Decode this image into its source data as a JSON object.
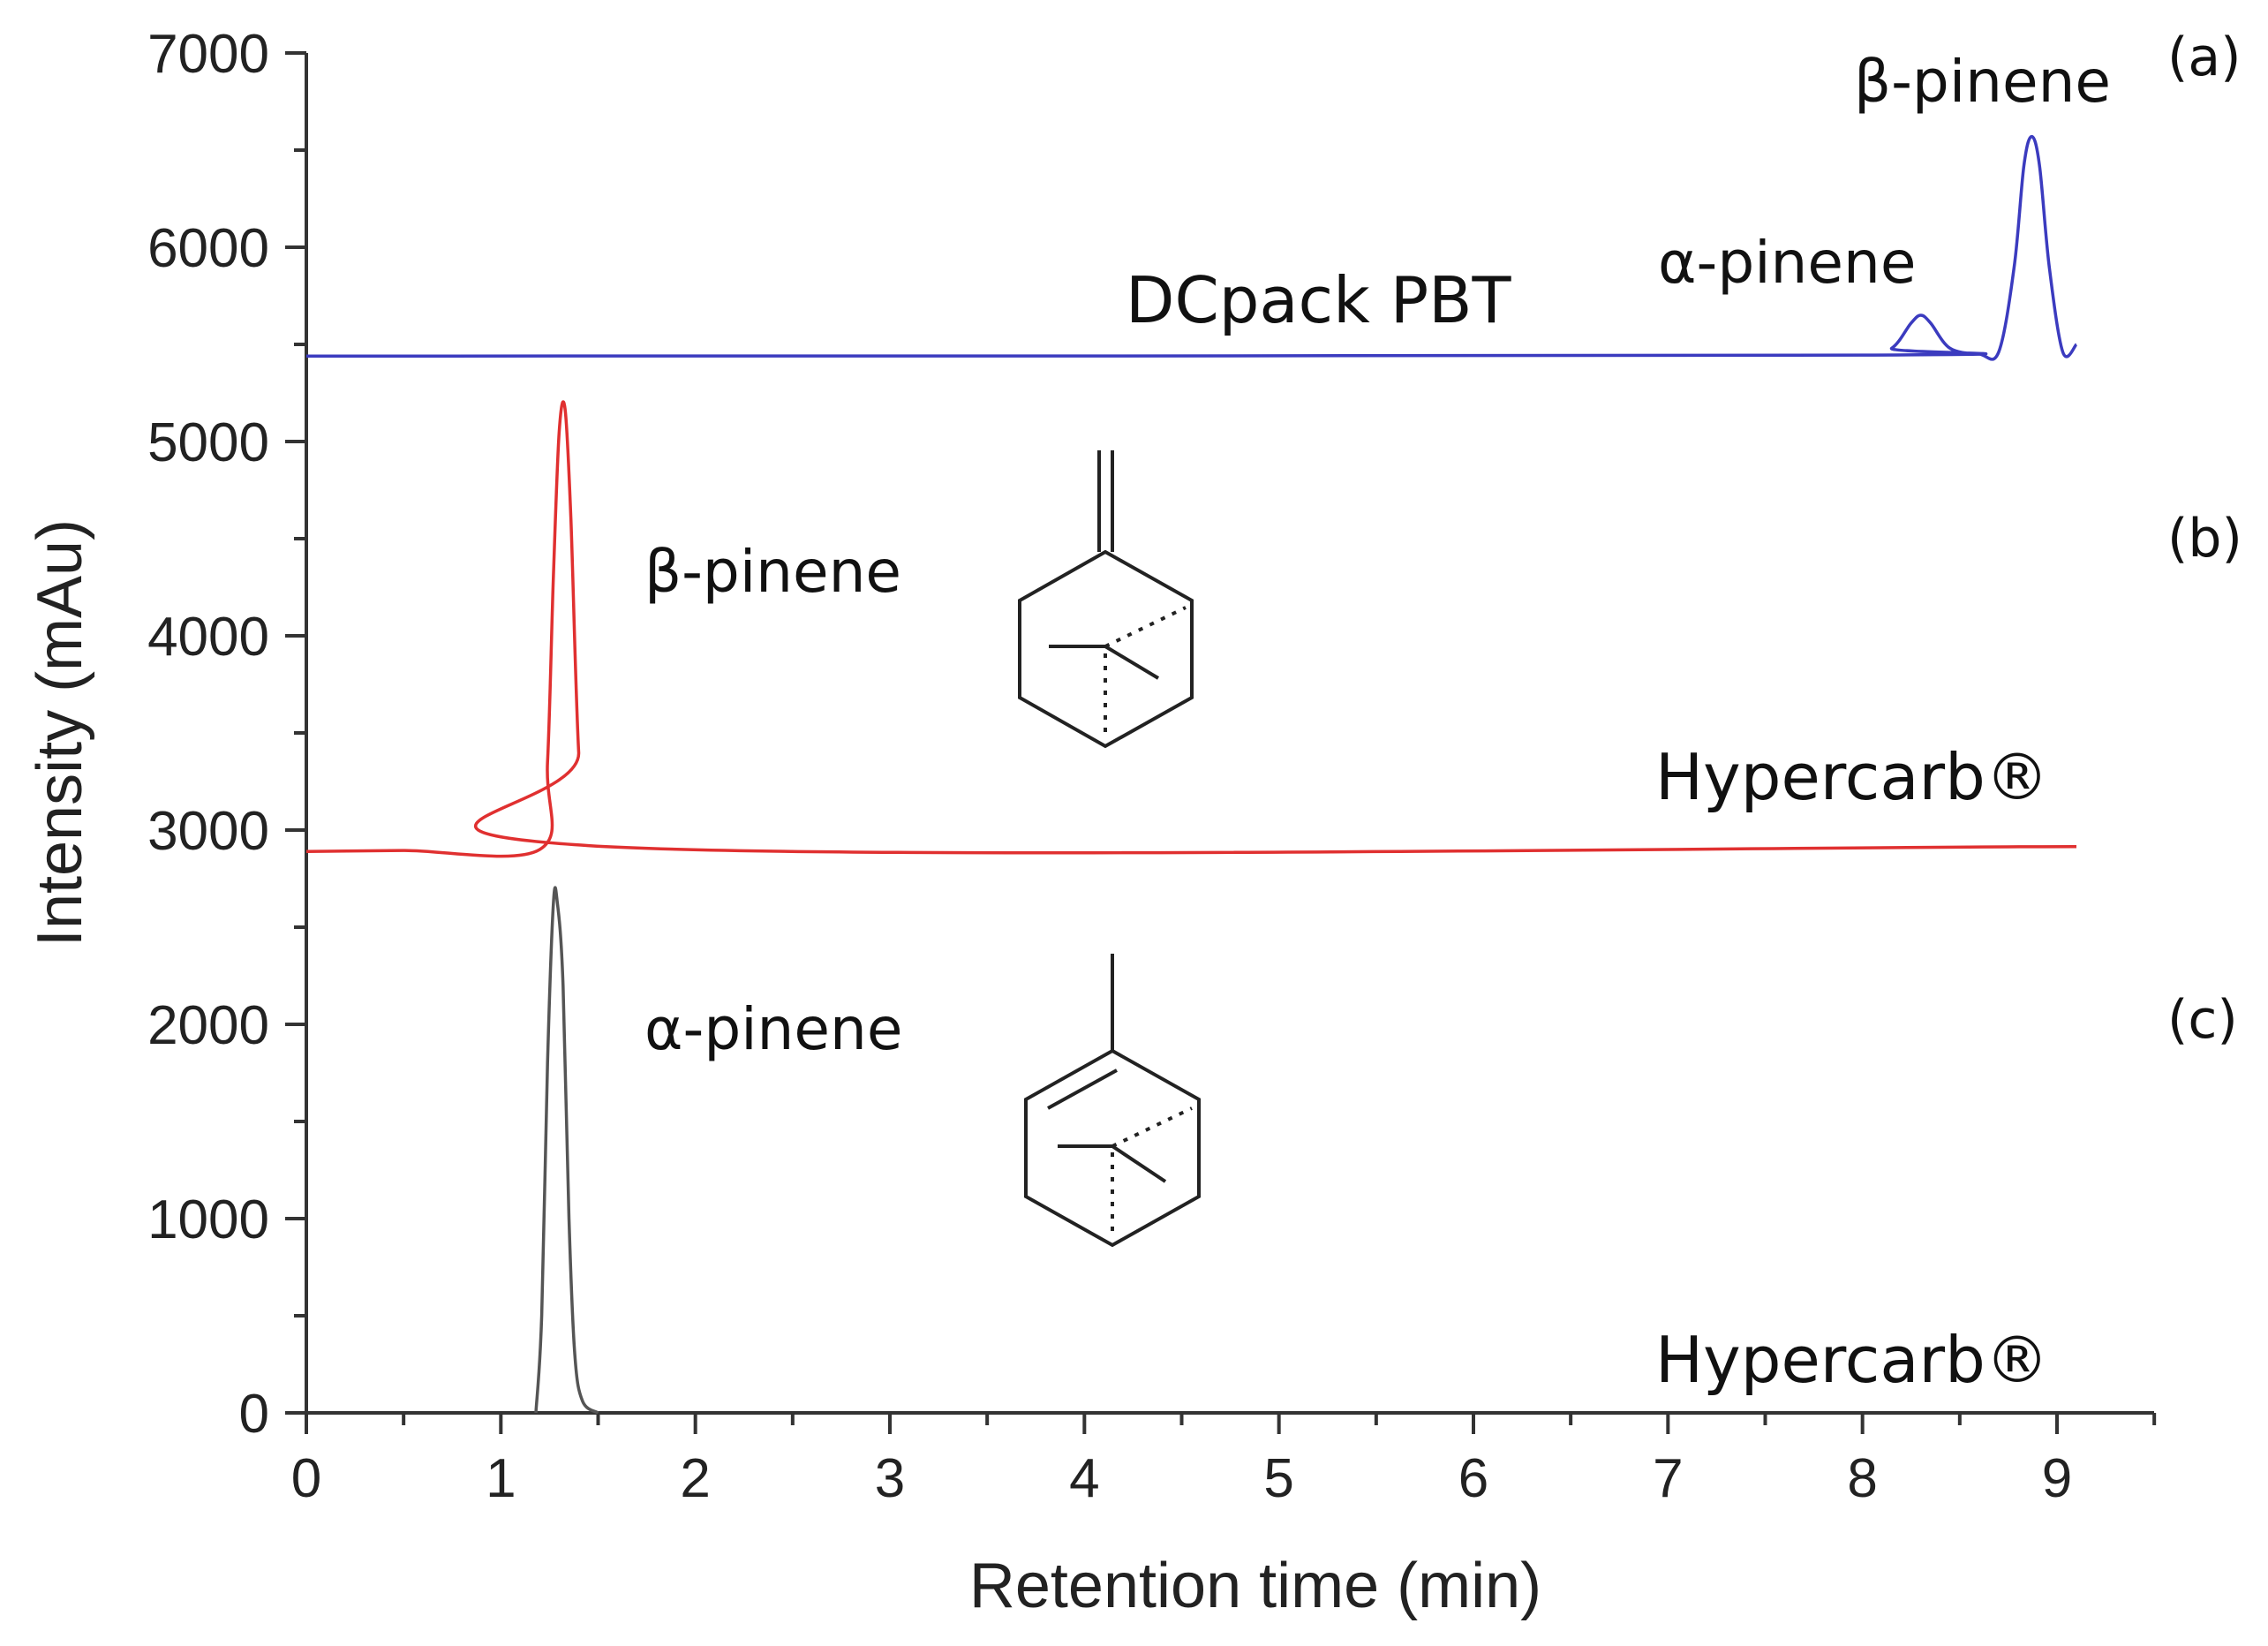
{
  "chart_data": {
    "type": "line",
    "xlabel": "Retention time (min)",
    "ylabel": "Intensity (mAu)",
    "xlim": [
      0,
      9.5
    ],
    "ylim": [
      0,
      7000
    ],
    "xticks": [
      "0",
      "1",
      "2",
      "3",
      "4",
      "5",
      "6",
      "7",
      "8",
      "9"
    ],
    "yticks": [
      "0",
      "1000",
      "2000",
      "3000",
      "4000",
      "5000",
      "6000",
      "7000"
    ],
    "grid": false,
    "series": [
      {
        "panel": "(a)",
        "column": "DCpack PBT",
        "color": "#3b3bbf",
        "x": [
          0.0,
          8.0,
          8.15,
          8.25,
          8.3,
          8.35,
          8.45,
          8.6,
          8.7,
          8.78,
          8.83,
          8.87,
          8.91,
          8.96,
          9.03,
          9.1
        ],
        "values": [
          5440,
          5445,
          5480,
          5610,
          5650,
          5610,
          5480,
          5450,
          5460,
          5900,
          6420,
          6570,
          6420,
          5900,
          5460,
          5500
        ]
      },
      {
        "panel": "(b)",
        "column": "Hypercarb®",
        "color": "#e03030",
        "x": [
          0.0,
          0.5,
          1.2,
          1.24,
          1.27,
          1.3,
          1.33,
          1.36,
          1.4,
          1.45,
          9.1
        ],
        "values": [
          2890,
          2895,
          2900,
          3350,
          4300,
          5050,
          5170,
          4600,
          3400,
          2920,
          2915
        ]
      },
      {
        "panel": "(c)",
        "column": "Hypercarb®",
        "color": "#555555",
        "x": [
          1.18,
          1.21,
          1.24,
          1.27,
          1.29,
          1.32,
          1.35,
          1.38,
          1.42,
          1.5
        ],
        "values": [
          0,
          500,
          1800,
          2620,
          2630,
          2200,
          1000,
          300,
          60,
          0
        ]
      }
    ],
    "annotations": {
      "panel_a": "(a)",
      "panel_b": "(b)",
      "panel_c": "(c)",
      "a_beta": "β-pinene",
      "a_alpha": "α-pinene",
      "a_column": "DCpack PBT",
      "b_compound": "β-pinene",
      "b_column": "Hypercarb®",
      "c_compound": "α-pinene",
      "c_column": "Hypercarb®"
    }
  }
}
